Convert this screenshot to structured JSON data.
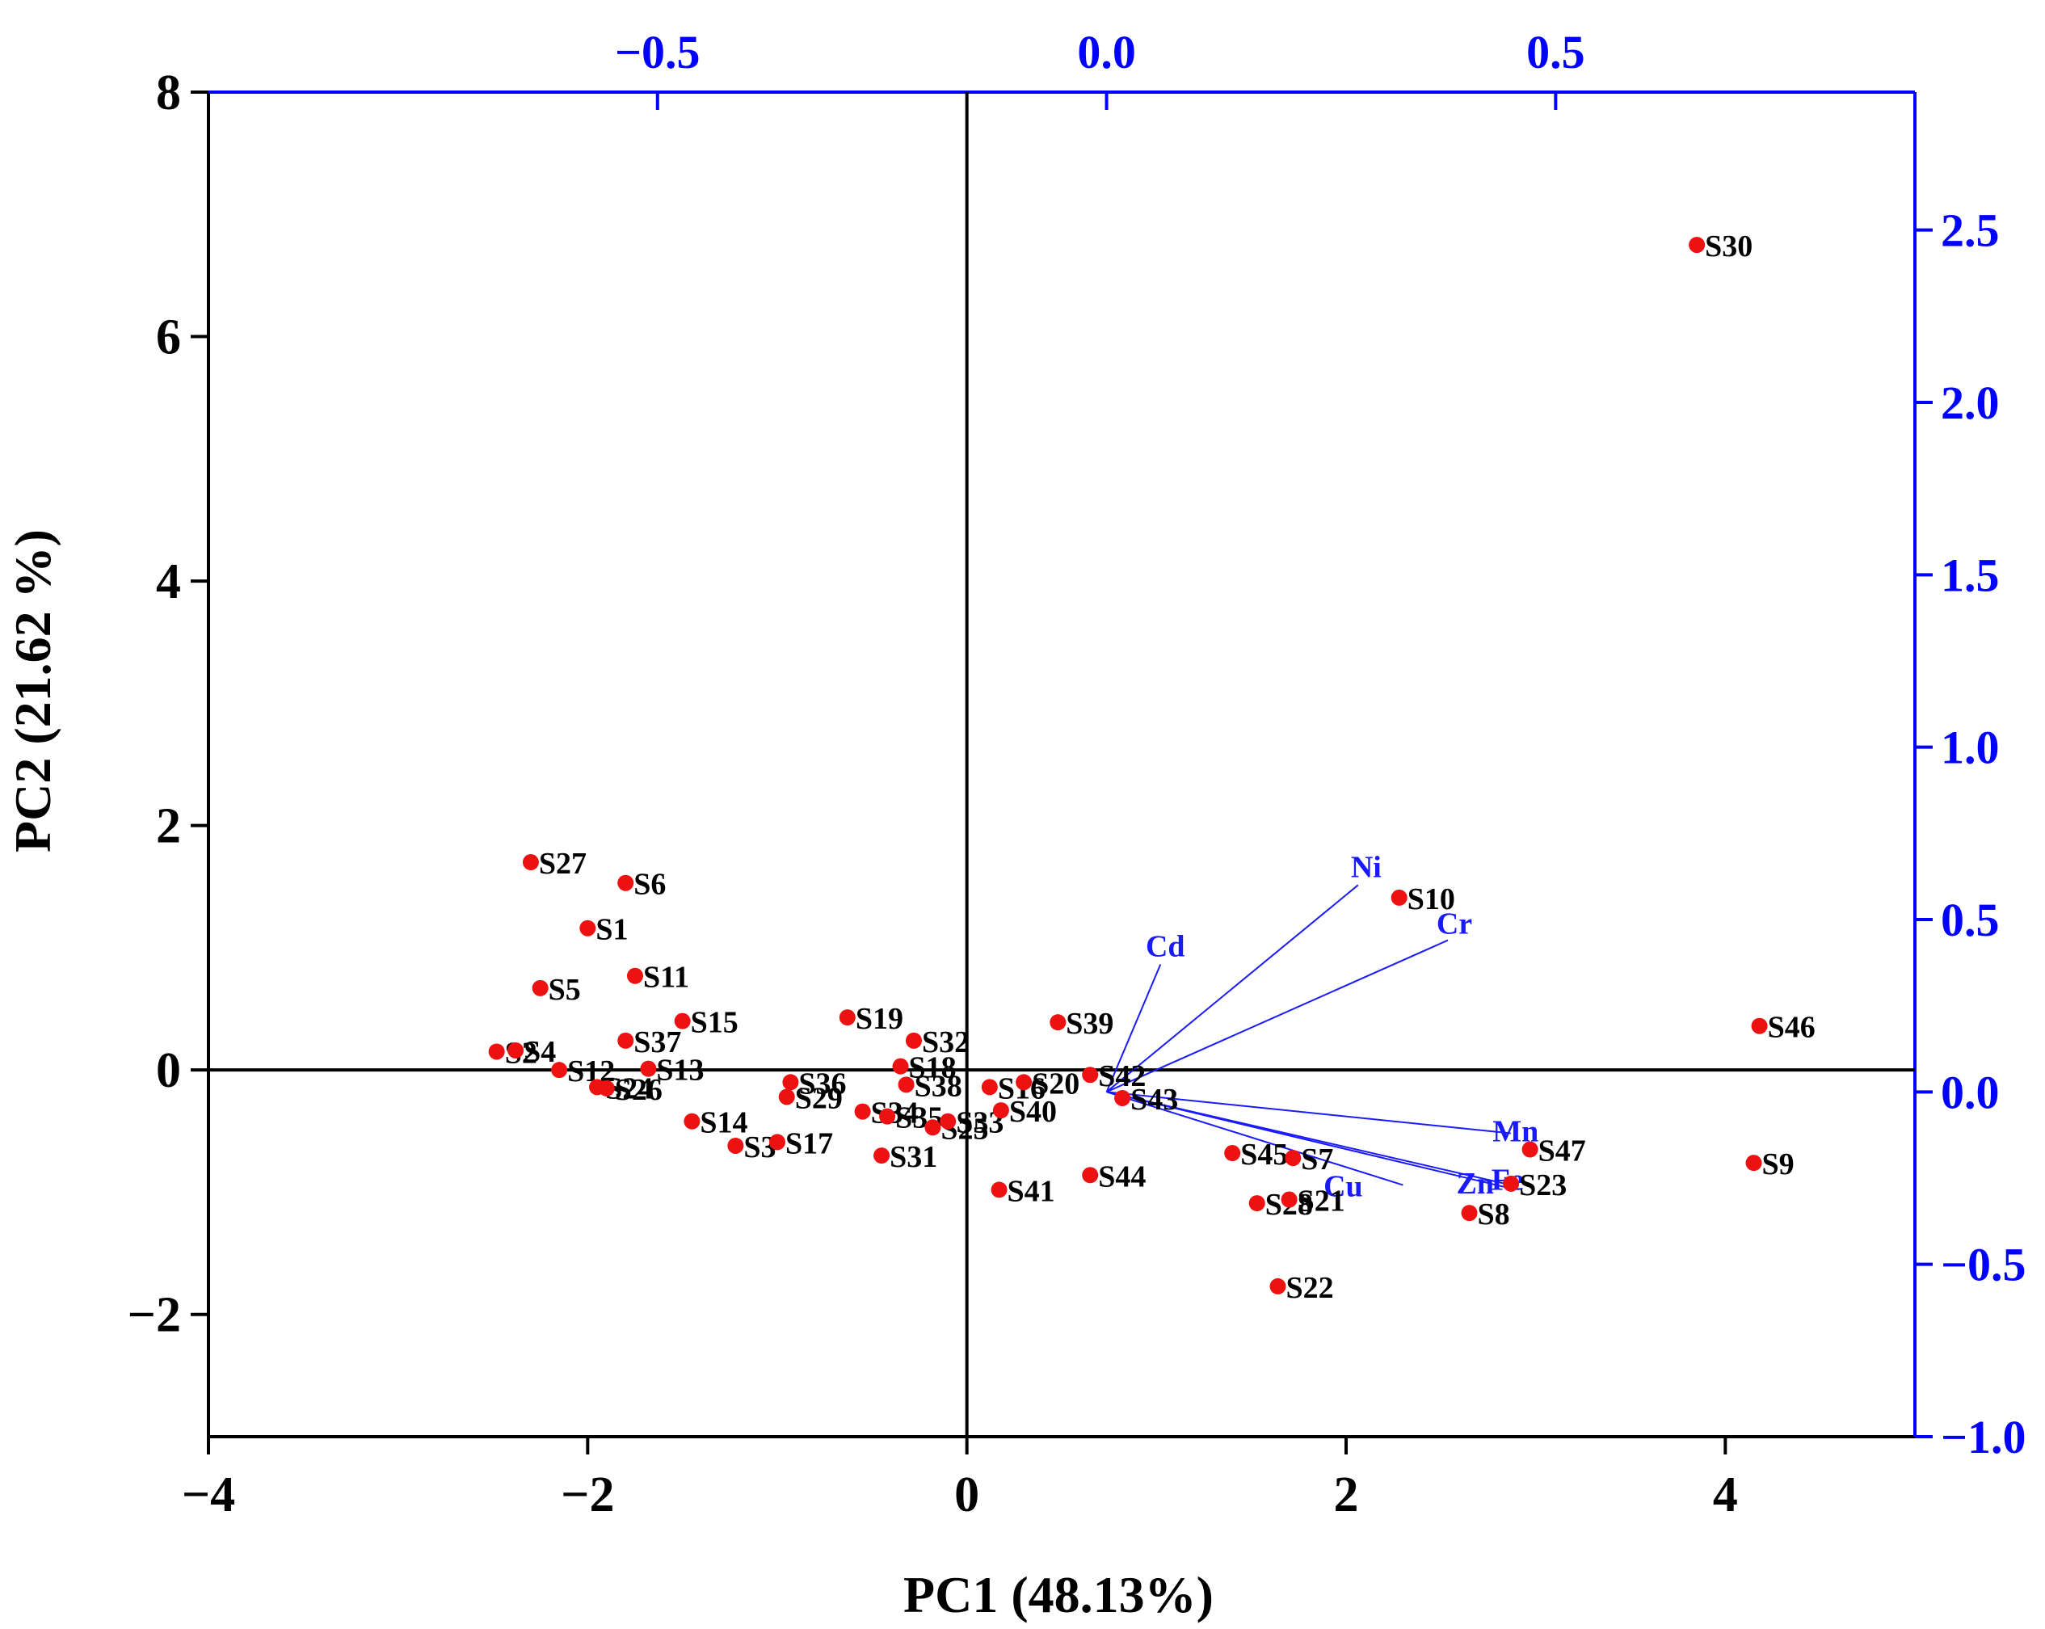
{
  "chart_data": {
    "type": "scatter",
    "subtype": "pca-biplot",
    "xlabel": "PC1 (48.13%)",
    "ylabel": "PC2 (21.62 %)",
    "xlim": [
      -4,
      5
    ],
    "ylim": [
      -3,
      8
    ],
    "xticks": [
      -4,
      -2,
      0,
      2,
      4
    ],
    "yticks": [
      -2,
      0,
      2,
      4,
      6,
      8
    ],
    "xtick_labels": [
      "−4",
      "−2",
      "0",
      "2",
      "4"
    ],
    "ytick_labels": [
      "−2",
      "0",
      "2",
      "4",
      "6",
      "8"
    ],
    "secondary_x": {
      "lim": [
        -1.0,
        0.9
      ],
      "ticks": [
        -0.5,
        0.0,
        0.5
      ],
      "tick_labels": [
        "−0.5",
        "0.0",
        "0.5"
      ]
    },
    "secondary_y": {
      "lim": [
        -1.0,
        2.9
      ],
      "ticks": [
        -1.0,
        -0.5,
        0.0,
        0.5,
        1.0,
        1.5,
        2.0,
        2.5
      ],
      "tick_labels": [
        "−1.0",
        "−0.5",
        "0.0",
        "0.5",
        "1.0",
        "1.5",
        "2.0",
        "2.5"
      ]
    },
    "colors": {
      "points": "#ee1111",
      "loadings": "#1a1aff",
      "axis_secondary": "#0000ff",
      "axis_primary": "#000000"
    },
    "scores": [
      {
        "label": "S30",
        "x": 3.85,
        "y": 6.75
      },
      {
        "label": "S27",
        "x": -2.3,
        "y": 1.7
      },
      {
        "label": "S6",
        "x": -1.8,
        "y": 1.53
      },
      {
        "label": "S1",
        "x": -2.0,
        "y": 1.16
      },
      {
        "label": "S11",
        "x": -1.75,
        "y": 0.77
      },
      {
        "label": "S5",
        "x": -2.25,
        "y": 0.67
      },
      {
        "label": "S15",
        "x": -1.5,
        "y": 0.4
      },
      {
        "label": "S37",
        "x": -1.8,
        "y": 0.24
      },
      {
        "label": "S2",
        "x": -2.48,
        "y": 0.15
      },
      {
        "label": "S4",
        "x": -2.38,
        "y": 0.16
      },
      {
        "label": "S12",
        "x": -2.15,
        "y": 0.0
      },
      {
        "label": "S24",
        "x": -1.95,
        "y": -0.14
      },
      {
        "label": "S26",
        "x": -1.9,
        "y": -0.15
      },
      {
        "label": "S13",
        "x": -1.68,
        "y": 0.01
      },
      {
        "label": "S14",
        "x": -1.45,
        "y": -0.42
      },
      {
        "label": "S3",
        "x": -1.22,
        "y": -0.62
      },
      {
        "label": "S17",
        "x": -1.0,
        "y": -0.59
      },
      {
        "label": "S36",
        "x": -0.93,
        "y": -0.1
      },
      {
        "label": "S29",
        "x": -0.95,
        "y": -0.22
      },
      {
        "label": "S19",
        "x": -0.63,
        "y": 0.43
      },
      {
        "label": "S32",
        "x": -0.28,
        "y": 0.24
      },
      {
        "label": "S18",
        "x": -0.35,
        "y": 0.03
      },
      {
        "label": "S38",
        "x": -0.32,
        "y": -0.12
      },
      {
        "label": "S34",
        "x": -0.55,
        "y": -0.34
      },
      {
        "label": "S35",
        "x": -0.42,
        "y": -0.38
      },
      {
        "label": "S25",
        "x": -0.18,
        "y": -0.47
      },
      {
        "label": "S33",
        "x": -0.1,
        "y": -0.42
      },
      {
        "label": "S31",
        "x": -0.45,
        "y": -0.7
      },
      {
        "label": "S16",
        "x": 0.12,
        "y": -0.14
      },
      {
        "label": "S20",
        "x": 0.3,
        "y": -0.1
      },
      {
        "label": "S40",
        "x": 0.18,
        "y": -0.33
      },
      {
        "label": "S39",
        "x": 0.48,
        "y": 0.39
      },
      {
        "label": "S42",
        "x": 0.65,
        "y": -0.04
      },
      {
        "label": "S43",
        "x": 0.82,
        "y": -0.23
      },
      {
        "label": "S41",
        "x": 0.17,
        "y": -0.98
      },
      {
        "label": "S44",
        "x": 0.65,
        "y": -0.86
      },
      {
        "label": "S45",
        "x": 1.4,
        "y": -0.68
      },
      {
        "label": "S7",
        "x": 1.72,
        "y": -0.72
      },
      {
        "label": "S28",
        "x": 1.53,
        "y": -1.09
      },
      {
        "label": "S21",
        "x": 1.7,
        "y": -1.06
      },
      {
        "label": "S22",
        "x": 1.64,
        "y": -1.77
      },
      {
        "label": "S10",
        "x": 2.28,
        "y": 1.41
      },
      {
        "label": "S46",
        "x": 4.18,
        "y": 0.36
      },
      {
        "label": "S47",
        "x": 2.97,
        "y": -0.65
      },
      {
        "label": "S9",
        "x": 4.15,
        "y": -0.76
      },
      {
        "label": "S23",
        "x": 2.87,
        "y": -0.93
      },
      {
        "label": "S8",
        "x": 2.65,
        "y": -1.17
      }
    ],
    "loadings": [
      {
        "label": "Ni",
        "x": 0.28,
        "y": 0.6
      },
      {
        "label": "Cr",
        "x": 0.38,
        "y": 0.44
      },
      {
        "label": "Cd",
        "x": 0.06,
        "y": 0.37
      },
      {
        "label": "Mn",
        "x": 0.45,
        "y": -0.12
      },
      {
        "label": "Fe",
        "x": 0.45,
        "y": -0.27
      },
      {
        "label": "Zn",
        "x": 0.45,
        "y": -0.28
      },
      {
        "label": "Cu",
        "x": 0.33,
        "y": -0.27
      }
    ]
  }
}
